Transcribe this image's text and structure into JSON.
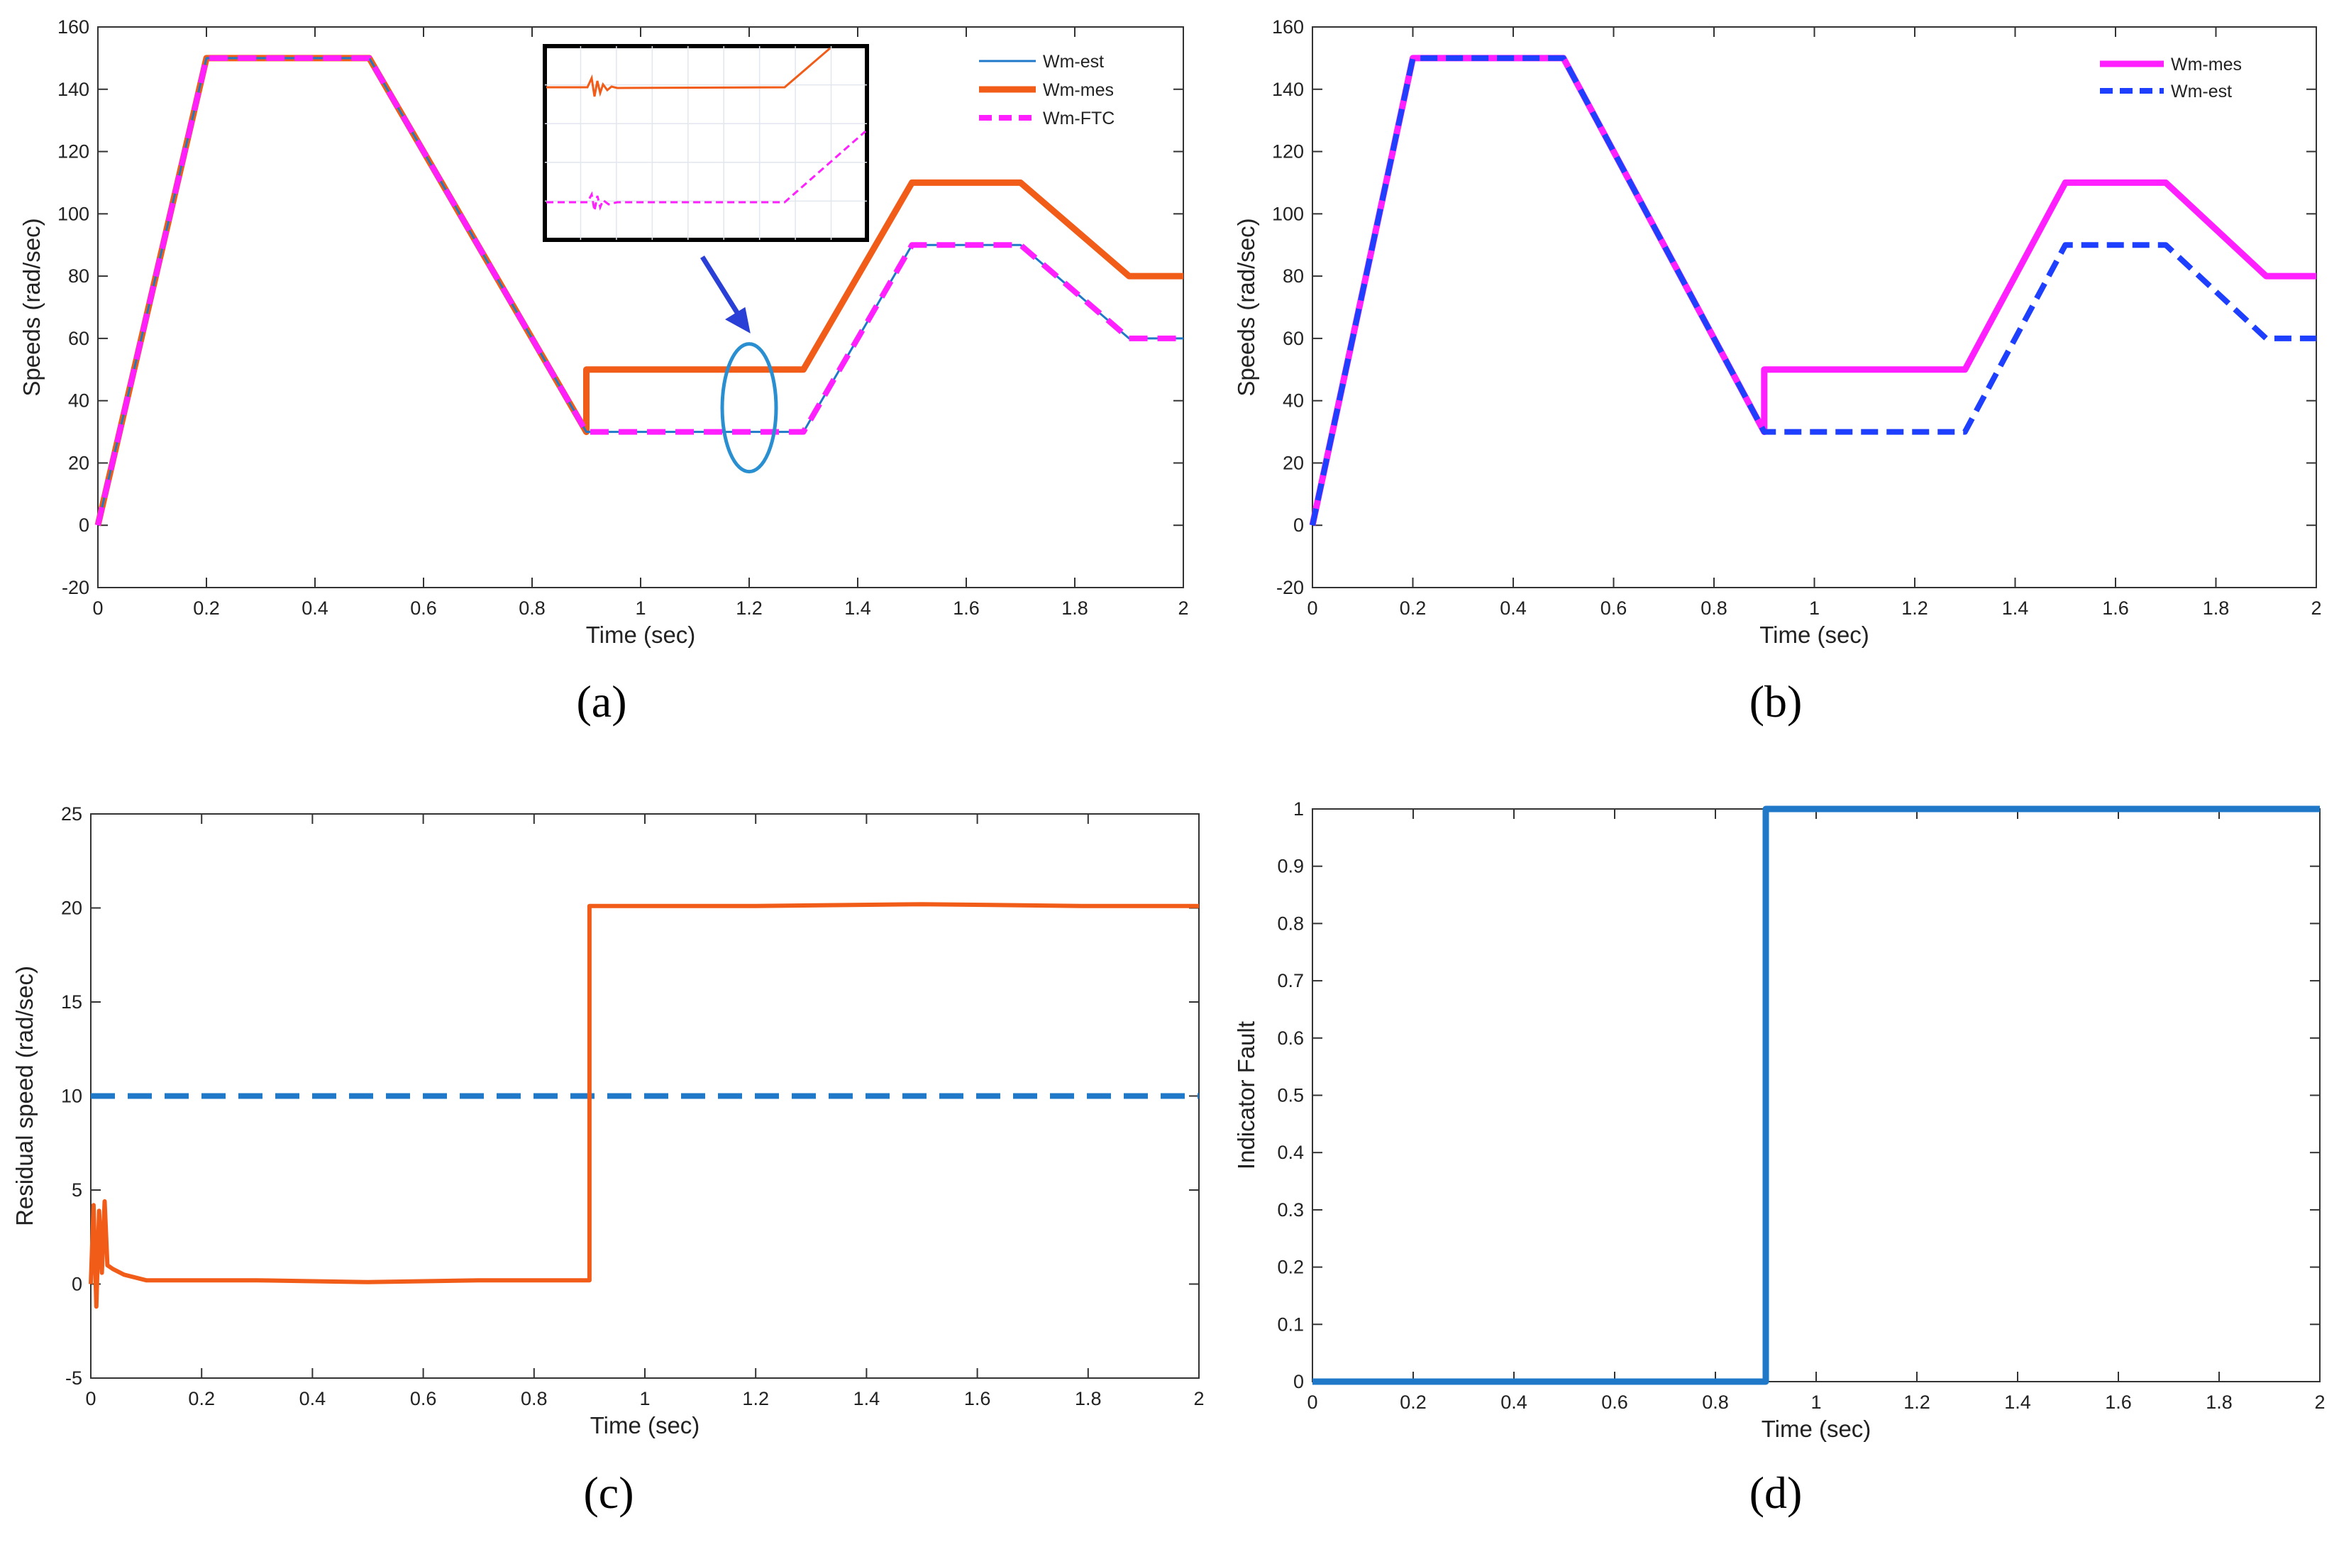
{
  "figure": {
    "panels": [
      "(a)",
      "(b)",
      "(c)",
      "(d)"
    ]
  },
  "colors": {
    "orange": "#f25c19",
    "magenta": "#ff1fff",
    "blue_est": "#1f78c8",
    "blue_dash": "#1f3fff",
    "threshold": "#1f78c8",
    "indicator": "#1f78c8",
    "arrow": "#2a3fd6",
    "ellipse": "#2a8fd0"
  },
  "chart_data": [
    {
      "id": "a",
      "type": "line",
      "xlabel": "Time (sec)",
      "ylabel": "Speeds (rad/sec)",
      "xlim": [
        0,
        2
      ],
      "ylim": [
        -20,
        160
      ],
      "xticks": [
        0,
        0.2,
        0.4,
        0.6,
        0.8,
        1,
        1.2,
        1.4,
        1.6,
        1.8,
        2
      ],
      "yticks": [
        -20,
        0,
        20,
        40,
        60,
        80,
        100,
        120,
        140,
        160
      ],
      "grid": false,
      "legend": "top-right",
      "series": [
        {
          "name": "Wm-est",
          "style": "thin",
          "x": [
            0,
            0.2,
            0.5,
            0.9,
            1.3,
            1.5,
            1.7,
            1.9,
            2
          ],
          "y": [
            0,
            150,
            150,
            30,
            30,
            90,
            90,
            60,
            60
          ]
        },
        {
          "name": "Wm-mes",
          "style": "thick",
          "x": [
            0,
            0.2,
            0.5,
            0.9,
            0.9,
            1.3,
            1.5,
            1.7,
            1.9,
            2
          ],
          "y": [
            0,
            150,
            150,
            30,
            50,
            50,
            110,
            110,
            80,
            80
          ]
        },
        {
          "name": "Wm-FTC",
          "style": "dashed",
          "x": [
            0,
            0.2,
            0.5,
            0.9,
            1.3,
            1.5,
            1.7,
            1.9,
            2
          ],
          "y": [
            0,
            150,
            150,
            30,
            30,
            90,
            90,
            60,
            60
          ]
        }
      ],
      "annotation": "inset zoom near t = 1.2 s"
    },
    {
      "id": "b",
      "type": "line",
      "xlabel": "Time (sec)",
      "ylabel": "Speeds (rad/sec)",
      "xlim": [
        0,
        2
      ],
      "ylim": [
        -20,
        160
      ],
      "xticks": [
        0,
        0.2,
        0.4,
        0.6,
        0.8,
        1,
        1.2,
        1.4,
        1.6,
        1.8,
        2
      ],
      "yticks": [
        -20,
        0,
        20,
        40,
        60,
        80,
        100,
        120,
        140,
        160
      ],
      "grid": false,
      "legend": "top-right",
      "series": [
        {
          "name": "Wm-mes",
          "style": "thick",
          "x": [
            0,
            0.2,
            0.5,
            0.9,
            0.9,
            1.3,
            1.5,
            1.7,
            1.9,
            2
          ],
          "y": [
            0,
            150,
            150,
            30,
            50,
            50,
            110,
            110,
            80,
            80
          ]
        },
        {
          "name": "Wm-est",
          "style": "dashed",
          "x": [
            0,
            0.2,
            0.5,
            0.9,
            1.3,
            1.5,
            1.7,
            1.9,
            2
          ],
          "y": [
            0,
            150,
            150,
            30,
            30,
            90,
            90,
            60,
            60
          ]
        }
      ]
    },
    {
      "id": "c",
      "type": "line",
      "xlabel": "Time (sec)",
      "ylabel": "Residual speed (rad/sec)",
      "xlim": [
        0,
        2
      ],
      "ylim": [
        -5,
        25
      ],
      "xticks": [
        0,
        0.2,
        0.4,
        0.6,
        0.8,
        1,
        1.2,
        1.4,
        1.6,
        1.8,
        2
      ],
      "yticks": [
        -5,
        0,
        5,
        10,
        15,
        20,
        25
      ],
      "grid": false,
      "series": [
        {
          "name": "residual",
          "style": "thick",
          "x": [
            0,
            0.005,
            0.01,
            0.015,
            0.02,
            0.025,
            0.03,
            0.04,
            0.06,
            0.1,
            0.3,
            0.5,
            0.7,
            0.9,
            0.9,
            1.2,
            1.5,
            1.8,
            2
          ],
          "y": [
            0,
            4.2,
            -1.2,
            3.9,
            0.6,
            4.4,
            1.0,
            0.8,
            0.5,
            0.2,
            0.2,
            0.1,
            0.2,
            0.2,
            20.1,
            20.1,
            20.2,
            20.1,
            20.1
          ]
        },
        {
          "name": "threshold",
          "style": "dashed",
          "x": [
            0,
            2
          ],
          "y": [
            10,
            10
          ]
        }
      ]
    },
    {
      "id": "d",
      "type": "line",
      "xlabel": "Time (sec)",
      "ylabel": "Indicator Fault",
      "xlim": [
        0,
        2
      ],
      "ylim": [
        0,
        1
      ],
      "xticks": [
        0,
        0.2,
        0.4,
        0.6,
        0.8,
        1,
        1.2,
        1.4,
        1.6,
        1.8,
        2
      ],
      "yticks": [
        0,
        0.1,
        0.2,
        0.3,
        0.4,
        0.5,
        0.6,
        0.7,
        0.8,
        0.9,
        1
      ],
      "grid": false,
      "series": [
        {
          "name": "indicator",
          "style": "thick",
          "x": [
            0,
            0.9,
            0.9,
            2
          ],
          "y": [
            0,
            0,
            1,
            1
          ]
        }
      ]
    }
  ]
}
